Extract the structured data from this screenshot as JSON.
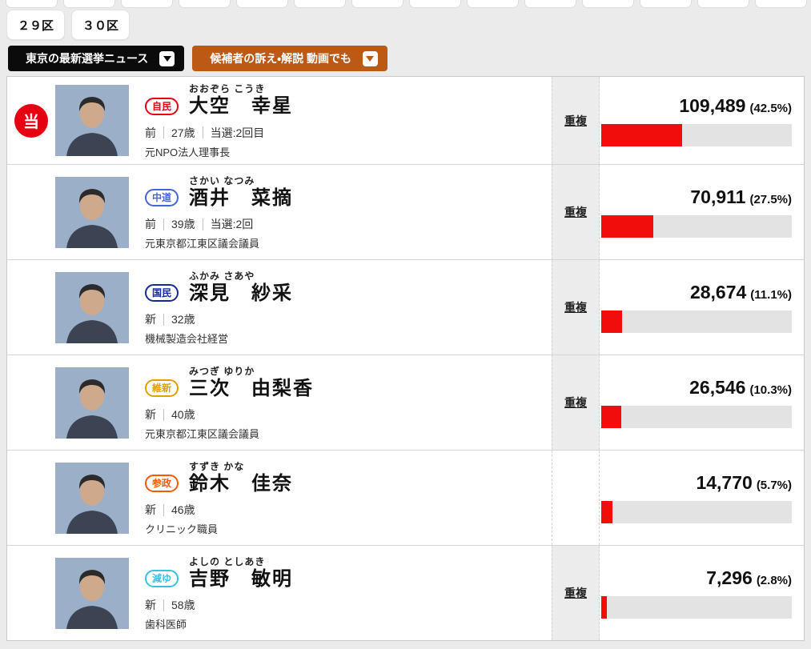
{
  "top_nav": {
    "stub_count": 14,
    "district_buttons": [
      "２９区",
      "３０区"
    ]
  },
  "toolbar": {
    "news_button": {
      "label": "東京の最新選挙ニュース",
      "bg": "#0b0b0b"
    },
    "video_button": {
      "label": "候補者の訴え・解説 動画でも",
      "bg": "#bc5a15"
    }
  },
  "results": {
    "winner_mark": "当",
    "dup_label": "重複",
    "colors": {
      "elected_red": "#e60012",
      "bar_red": "#f20d0d",
      "bar_track": "#e3e3e3"
    },
    "candidates": [
      {
        "elected": true,
        "party": "自民",
        "party_color": "#e60012",
        "furigana": "おおぞら こうき",
        "name": "大空　幸星",
        "status_parts": [
          "前",
          "27歳",
          "当選:2回目"
        ],
        "occupation": "元NPO法人理事長",
        "dup": true,
        "votes": "109,489",
        "pct_label": "(42.5%)",
        "pct": 42.5
      },
      {
        "elected": false,
        "party": "中道",
        "party_color": "#4565e0",
        "furigana": "さかい なつみ",
        "name": "酒井　菜摘",
        "status_parts": [
          "前",
          "39歳",
          "当選:2回"
        ],
        "occupation": "元東京都江東区議会議員",
        "dup": true,
        "votes": "70,911",
        "pct_label": "(27.5%)",
        "pct": 27.5
      },
      {
        "elected": false,
        "party": "国民",
        "party_color": "#142a9b",
        "furigana": "ふかみ さあや",
        "name": "深見　紗采",
        "status_parts": [
          "新",
          "32歳"
        ],
        "occupation": "機械製造会社経営",
        "dup": true,
        "votes": "28,674",
        "pct_label": "(11.1%)",
        "pct": 11.1
      },
      {
        "elected": false,
        "party": "維新",
        "party_color": "#e0a000",
        "furigana": "みつぎ ゆりか",
        "name": "三次　由梨香",
        "status_parts": [
          "新",
          "40歳"
        ],
        "occupation": "元東京都江東区議会議員",
        "dup": true,
        "votes": "26,546",
        "pct_label": "(10.3%)",
        "pct": 10.3
      },
      {
        "elected": false,
        "party": "参政",
        "party_color": "#f55a00",
        "furigana": "すずき かな",
        "name": "鈴木　佳奈",
        "status_parts": [
          "新",
          "46歳"
        ],
        "occupation": "クリニック職員",
        "dup": false,
        "votes": "14,770",
        "pct_label": "(5.7%)",
        "pct": 5.7
      },
      {
        "elected": false,
        "party": "減ゆ",
        "party_color": "#35c3e3",
        "furigana": "よしの としあき",
        "name": "吉野　敏明",
        "status_parts": [
          "新",
          "58歳"
        ],
        "occupation": "歯科医師",
        "dup": true,
        "votes": "7,296",
        "pct_label": "(2.8%)",
        "pct": 2.8
      }
    ]
  }
}
